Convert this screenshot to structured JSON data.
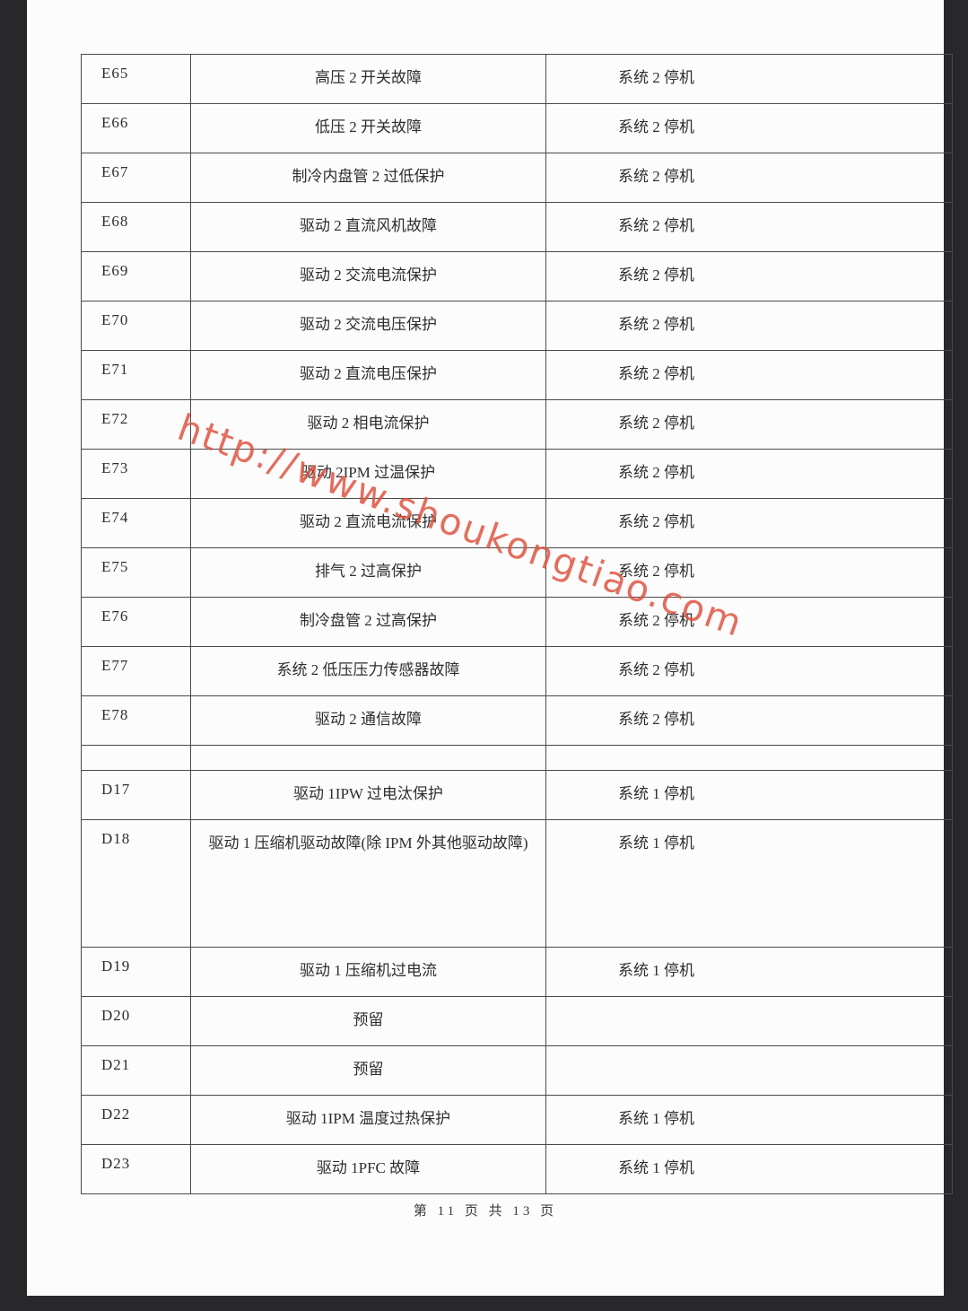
{
  "page": {
    "footer": "第 11 页 共 13 页",
    "watermark": "http://www.shoukongtiao.com"
  },
  "colors": {
    "watermark": "rgba(222, 80, 60, 1)",
    "paper": "#fcfcfc",
    "scan_edge": "#28282a",
    "table_border": "#4a4a4a"
  },
  "table": {
    "rows": [
      {
        "code": "E65",
        "description": "高压 2 开关故障",
        "action": "系统 2 停机"
      },
      {
        "code": "E66",
        "description": "低压 2 开关故障",
        "action": "系统 2 停机"
      },
      {
        "code": "E67",
        "description": "制冷内盘管 2 过低保护",
        "action": "系统 2 停机"
      },
      {
        "code": "E68",
        "description": "驱动 2 直流风机故障",
        "action": "系统 2 停机"
      },
      {
        "code": "E69",
        "description": "驱动 2 交流电流保护",
        "action": "系统 2 停机"
      },
      {
        "code": "E70",
        "description": "驱动 2 交流电压保护",
        "action": "系统 2 停机"
      },
      {
        "code": "E71",
        "description": "驱动 2 直流电压保护",
        "action": "系统 2 停机"
      },
      {
        "code": "E72",
        "description": "驱动 2 相电流保护",
        "action": "系统 2 停机"
      },
      {
        "code": "E73",
        "description": "驱动 2IPM 过温保护",
        "action": "系统 2 停机"
      },
      {
        "code": "E74",
        "description": "驱动 2 直流电流保护",
        "action": "系统 2 停机"
      },
      {
        "code": "E75",
        "description": "排气 2 过高保护",
        "action": "系统 2 停机"
      },
      {
        "code": "E76",
        "description": "制冷盘管 2 过高保护",
        "action": "系统 2 停机"
      },
      {
        "code": "E77",
        "description": "系统 2 低压压力传感器故障",
        "action": "系统 2 停机"
      },
      {
        "code": "E78",
        "description": "驱动 2 通信故障",
        "action": "系统 2 停机"
      },
      {
        "code": "",
        "description": "",
        "action": ""
      },
      {
        "code": "D17",
        "description": "驱动 1IPW 过电汰保护",
        "action": "系统 1 停机"
      },
      {
        "code": "D18",
        "description": "驱动 1 压缩机驱动故障(除 IPM 外其他驱动故障)",
        "action": "系统 1 停机"
      },
      {
        "code": "D19",
        "description": "驱动 1 压缩机过电流",
        "action": "系统 1 停机"
      },
      {
        "code": "D20",
        "description": "预留",
        "action": ""
      },
      {
        "code": "D21",
        "description": "预留",
        "action": ""
      },
      {
        "code": "D22",
        "description": "驱动 1IPM 温度过热保护",
        "action": "系统 1 停机"
      },
      {
        "code": "D23",
        "description": "驱动 1PFC 故障",
        "action": "系统 1 停机"
      }
    ]
  }
}
